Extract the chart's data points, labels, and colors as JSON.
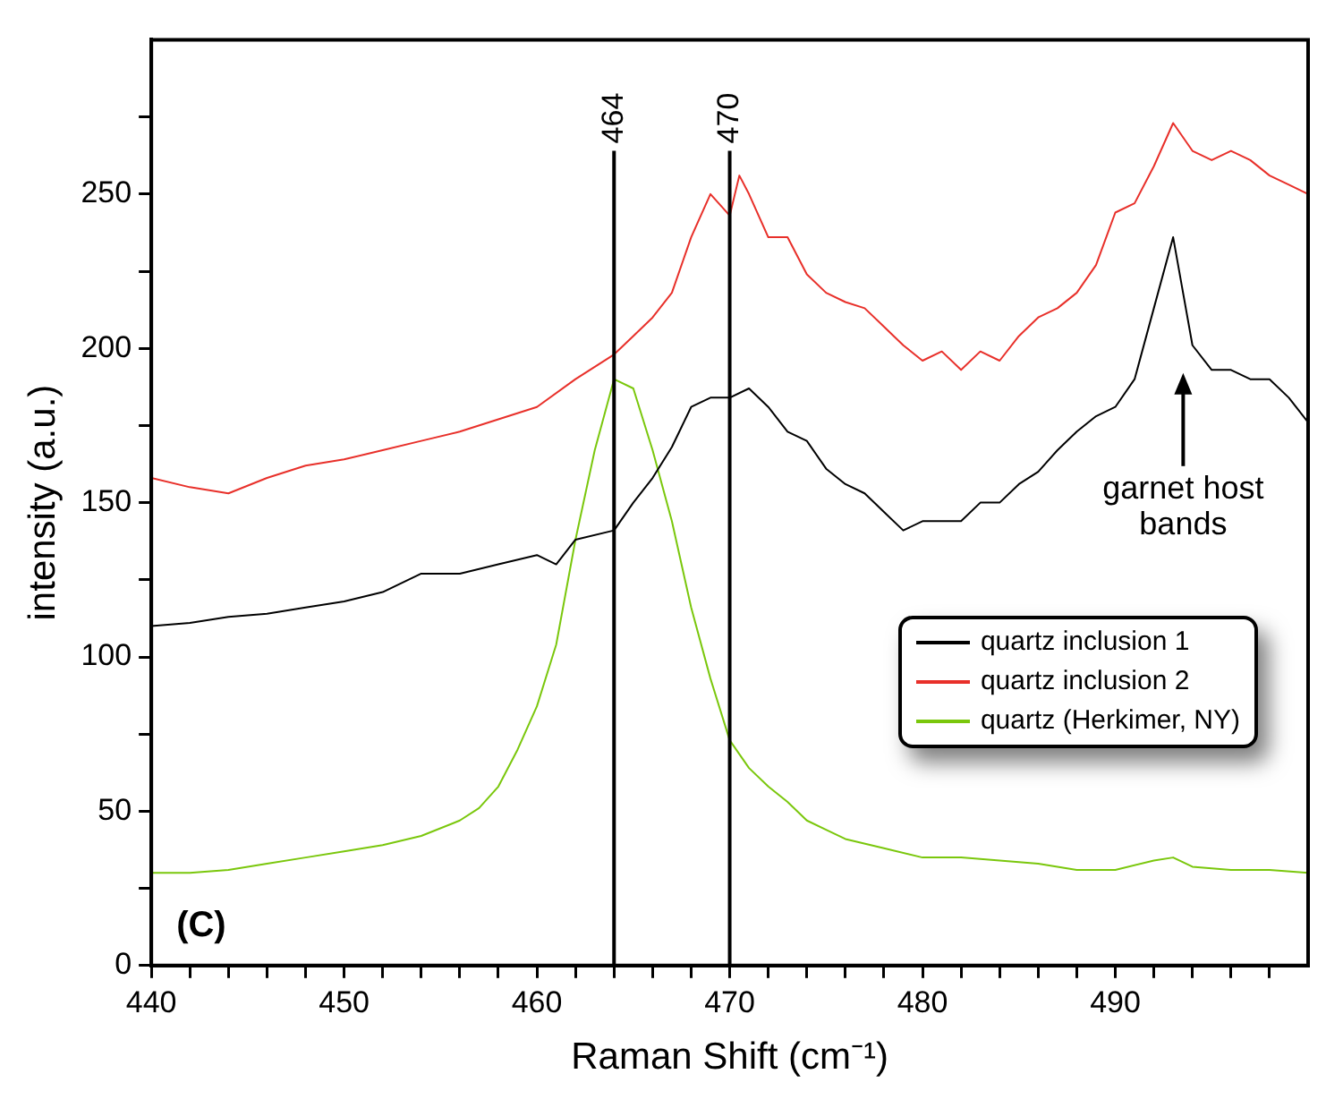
{
  "chart_data": {
    "type": "line",
    "xlabel": "Raman Shift (cm⁻¹)",
    "ylabel": "intensity (a.u.)",
    "xlim": [
      440,
      500
    ],
    "ylim": [
      0,
      300
    ],
    "xticks": [
      440,
      {
        "value": 442,
        "label": null
      },
      {
        "value": 444,
        "label": null
      },
      {
        "value": 446,
        "label": null
      },
      {
        "value": 448,
        "label": null
      },
      450,
      {
        "value": 452,
        "label": null
      },
      {
        "value": 454,
        "label": null
      },
      {
        "value": 456,
        "label": null
      },
      {
        "value": 458,
        "label": null
      },
      460,
      {
        "value": 462,
        "label": null
      },
      {
        "value": 464,
        "label": null
      },
      {
        "value": 466,
        "label": null
      },
      {
        "value": 468,
        "label": null
      },
      470,
      {
        "value": 472,
        "label": null
      },
      {
        "value": 474,
        "label": null
      },
      {
        "value": 476,
        "label": null
      },
      {
        "value": 478,
        "label": null
      },
      480,
      {
        "value": 482,
        "label": null
      },
      {
        "value": 484,
        "label": null
      },
      {
        "value": 486,
        "label": null
      },
      {
        "value": 488,
        "label": null
      },
      490,
      {
        "value": 492,
        "label": null
      },
      {
        "value": 494,
        "label": null
      },
      {
        "value": 496,
        "label": null
      },
      {
        "value": 498,
        "label": null
      }
    ],
    "yticks": [
      0,
      {
        "value": 25,
        "label": null
      },
      50,
      {
        "value": 75,
        "label": null
      },
      100,
      {
        "value": 125,
        "label": null
      },
      150,
      {
        "value": 175,
        "label": null
      },
      200,
      {
        "value": 225,
        "label": null
      },
      250,
      {
        "value": 275,
        "label": null
      }
    ],
    "series": [
      {
        "name": "quartz inclusion 1",
        "color": "#000000",
        "x": [
          440,
          442,
          444,
          446,
          448,
          450,
          452,
          454,
          456,
          458,
          460,
          461,
          462,
          464,
          465,
          466,
          467,
          468,
          469,
          470,
          471,
          472,
          473,
          474,
          475,
          476,
          477,
          478,
          479,
          480,
          481,
          482,
          483,
          484,
          485,
          486,
          487,
          488,
          489,
          490,
          491,
          492,
          493,
          494,
          495,
          496,
          497,
          498,
          499,
          500
        ],
        "values": [
          110,
          111,
          113,
          114,
          116,
          118,
          121,
          127,
          127,
          130,
          133,
          130,
          138,
          141,
          150,
          158,
          168,
          181,
          184,
          184,
          187,
          181,
          173,
          170,
          161,
          156,
          153,
          147,
          141,
          144,
          144,
          144,
          150,
          150,
          156,
          160,
          167,
          173,
          178,
          181,
          190,
          213,
          236,
          201,
          193,
          193,
          190,
          190,
          184,
          176
        ]
      },
      {
        "name": "quartz inclusion 2",
        "color": "#e8302a",
        "x": [
          440,
          442,
          444,
          446,
          448,
          450,
          452,
          454,
          456,
          458,
          460,
          462,
          463,
          464,
          465,
          466,
          467,
          468,
          469,
          470,
          470.5,
          471,
          472,
          473,
          474,
          475,
          476,
          477,
          478,
          479,
          480,
          481,
          482,
          483,
          484,
          485,
          486,
          487,
          488,
          489,
          490,
          491,
          492,
          493,
          494,
          495,
          496,
          497,
          498,
          499,
          500
        ],
        "values": [
          158,
          155,
          153,
          158,
          162,
          164,
          167,
          170,
          173,
          177,
          181,
          190,
          194,
          198,
          204,
          210,
          218,
          236,
          250,
          243,
          256,
          250,
          236,
          236,
          224,
          218,
          215,
          213,
          207,
          201,
          196,
          199,
          193,
          199,
          196,
          204,
          210,
          213,
          218,
          227,
          244,
          247,
          259,
          273,
          264,
          261,
          264,
          261,
          256,
          253,
          250
        ]
      },
      {
        "name": "quartz (Herkimer, NY)",
        "color": "#7ac70c",
        "x": [
          440,
          442,
          444,
          446,
          448,
          450,
          452,
          454,
          456,
          457,
          458,
          459,
          460,
          461,
          462,
          463,
          464,
          465,
          466,
          467,
          468,
          469,
          470,
          471,
          472,
          473,
          474,
          475,
          476,
          478,
          480,
          482,
          484,
          486,
          488,
          490,
          492,
          493,
          494,
          496,
          498,
          500
        ],
        "values": [
          30,
          30,
          31,
          33,
          35,
          37,
          39,
          42,
          47,
          51,
          58,
          70,
          84,
          104,
          138,
          167,
          190,
          187,
          167,
          144,
          116,
          93,
          73,
          64,
          58,
          53,
          47,
          44,
          41,
          38,
          35,
          35,
          34,
          33,
          31,
          31,
          34,
          35,
          32,
          31,
          31,
          30
        ]
      }
    ],
    "ref_lines": [
      {
        "axis": "x",
        "value": 464,
        "label": "464",
        "color": "#000000"
      },
      {
        "axis": "x",
        "value": 470,
        "label": "470",
        "color": "#000000"
      }
    ],
    "annotations": [
      "garnet host bands",
      "(C)"
    ],
    "legend": "bottom right",
    "grid": false,
    "marker": "none",
    "line_style": "solid"
  }
}
